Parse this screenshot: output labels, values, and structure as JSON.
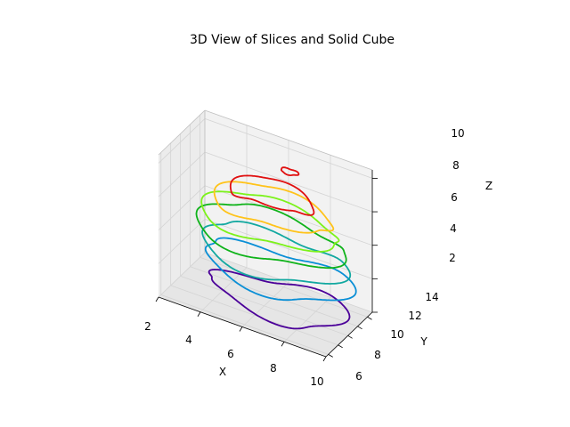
{
  "chart_data": {
    "type": "line",
    "title": "3D View of Slices and Solid Cube",
    "xlabel": "X",
    "ylabel": "Y",
    "zlabel": "Z",
    "xlim": [
      2,
      10
    ],
    "ylim": [
      5.5,
      15
    ],
    "zlim": [
      2,
      10.5
    ],
    "x_ticks": [
      "2",
      "4",
      "6",
      "8",
      "10"
    ],
    "y_ticks": [
      "6",
      "8",
      "10",
      "12",
      "14"
    ],
    "z_ticks": [
      "2",
      "4",
      "6",
      "8",
      "10"
    ],
    "grid": true,
    "series": [
      {
        "color": "#4b0099",
        "z": 2.6,
        "x_range": [
          3.2,
          9.6
        ],
        "y_range": [
          7.0,
          13.5
        ]
      },
      {
        "color": "#0a8fd6",
        "z": 4.2,
        "x_range": [
          3.0,
          9.8
        ],
        "y_range": [
          6.8,
          14.2
        ]
      },
      {
        "color": "#12a8a0",
        "z": 5.2,
        "x_range": [
          3.1,
          9.7
        ],
        "y_range": [
          6.6,
          14.3
        ]
      },
      {
        "color": "#0fb31a",
        "z": 6.2,
        "x_range": [
          3.0,
          9.8
        ],
        "y_range": [
          6.5,
          14.5
        ]
      },
      {
        "color": "#7cf21a",
        "z": 7.0,
        "x_range": [
          3.3,
          9.6
        ],
        "y_range": [
          6.8,
          14.0
        ]
      },
      {
        "color": "#ffc31a",
        "z": 7.8,
        "x_range": [
          3.8,
          9.2
        ],
        "y_range": [
          7.3,
          13.5
        ]
      },
      {
        "color": "#e01010",
        "z": 8.6,
        "x_range": [
          4.4,
          8.2
        ],
        "y_range": [
          8.0,
          12.5
        ]
      },
      {
        "color": "#e01010",
        "z": 10.2,
        "x_range": [
          6.6,
          7.4
        ],
        "y_range": [
          10.4,
          11.4
        ]
      }
    ]
  }
}
